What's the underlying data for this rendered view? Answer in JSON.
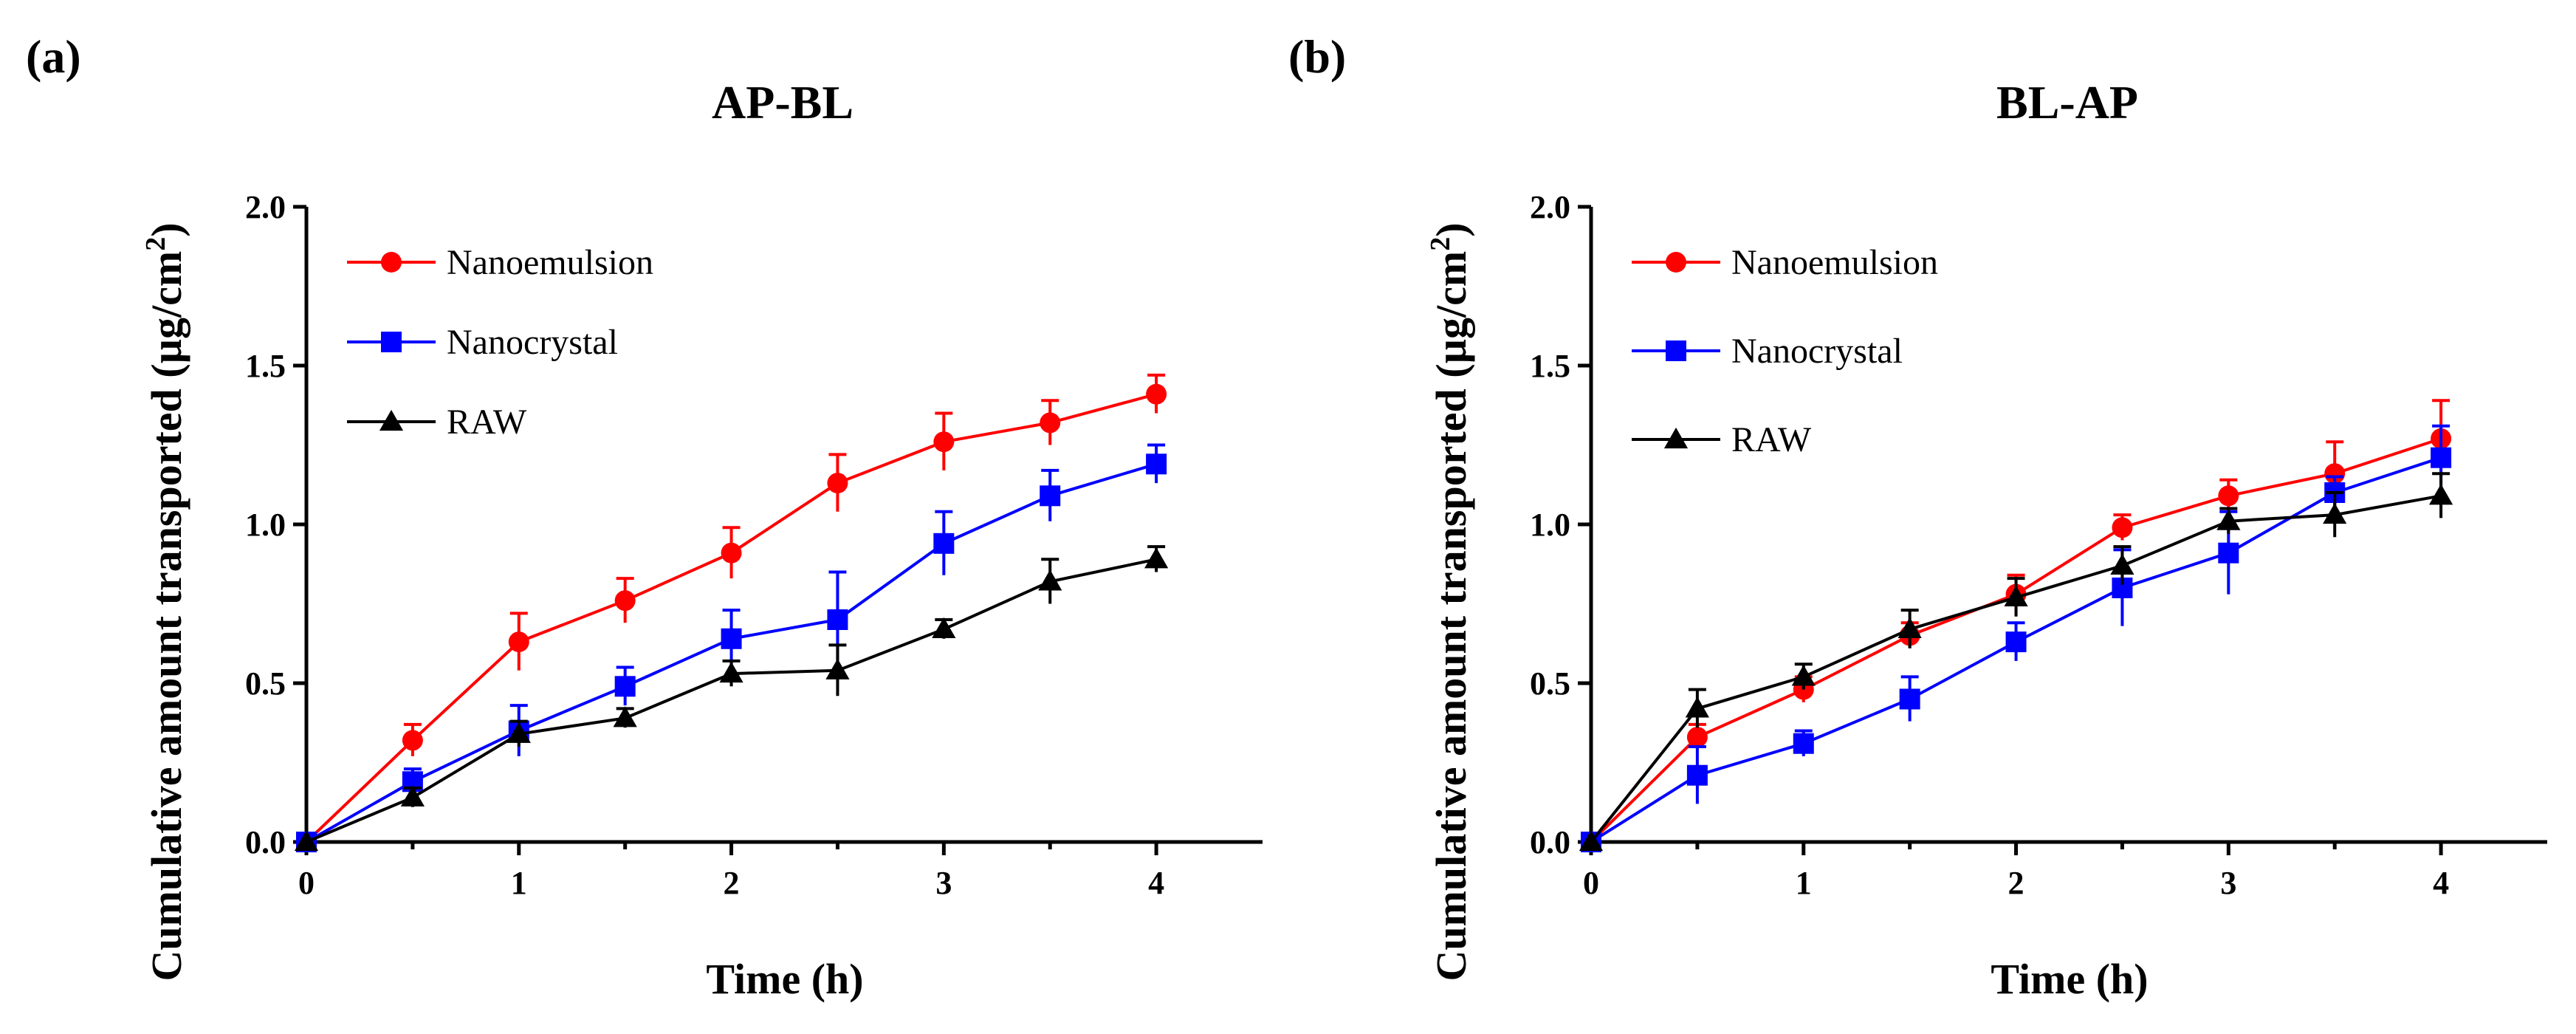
{
  "chart_data": [
    {
      "type": "line",
      "panel_label": "(a)",
      "title": "AP-BL",
      "xlabel": "Time (h)",
      "ylabel": "Cumulative amount transported (µg/cm²)",
      "ylabel_main": "Cumulative amount transported (µg/cm",
      "ylabel_sup": "2",
      "ylabel_end": ")",
      "xlim": [
        0,
        4.5
      ],
      "ylim": [
        0,
        2.0
      ],
      "x_ticks": [
        0,
        1,
        2,
        3,
        4
      ],
      "y_ticks": [
        0.0,
        0.5,
        1.0,
        1.5,
        2.0
      ],
      "x_tick_labels": [
        "0",
        "1",
        "2",
        "3",
        "4"
      ],
      "y_tick_labels": [
        "0.0",
        "0.5",
        "1.0",
        "1.5",
        "2.0"
      ],
      "legend_position": "top-left",
      "x": [
        0,
        0.5,
        1,
        1.5,
        2,
        2.5,
        3,
        3.5,
        4
      ],
      "series": [
        {
          "name": "Nanoemulsion",
          "color": "#ff0000",
          "marker": "circle",
          "values": [
            0,
            0.32,
            0.63,
            0.76,
            0.91,
            1.13,
            1.26,
            1.32,
            1.41
          ],
          "errors": [
            0,
            0.05,
            0.09,
            0.07,
            0.08,
            0.09,
            0.09,
            0.07,
            0.06
          ]
        },
        {
          "name": "Nanocrystal",
          "color": "#0000ff",
          "marker": "square",
          "values": [
            0,
            0.19,
            0.35,
            0.49,
            0.64,
            0.7,
            0.94,
            1.09,
            1.19
          ],
          "errors": [
            0,
            0.04,
            0.08,
            0.06,
            0.09,
            0.15,
            0.1,
            0.08,
            0.06
          ]
        },
        {
          "name": "RAW",
          "color": "#000000",
          "marker": "triangle",
          "values": [
            0,
            0.14,
            0.34,
            0.39,
            0.53,
            0.54,
            0.67,
            0.82,
            0.89
          ],
          "errors": [
            0,
            0.03,
            0.04,
            0.03,
            0.04,
            0.08,
            0.03,
            0.07,
            0.04
          ]
        }
      ]
    },
    {
      "type": "line",
      "panel_label": "(b)",
      "title": "BL-AP",
      "xlabel": "Time (h)",
      "ylabel": "Cumulative amount transported (µg/cm²)",
      "ylabel_main": "Cumulative amount transported (µg/cm",
      "ylabel_sup": "2",
      "ylabel_end": ")",
      "xlim": [
        0,
        4.5
      ],
      "ylim": [
        0,
        2.0
      ],
      "x_ticks": [
        0,
        1,
        2,
        3,
        4
      ],
      "y_ticks": [
        0.0,
        0.5,
        1.0,
        1.5,
        2.0
      ],
      "x_tick_labels": [
        "0",
        "1",
        "2",
        "3",
        "4"
      ],
      "y_tick_labels": [
        "0.0",
        "0.5",
        "1.0",
        "1.5",
        "2.0"
      ],
      "legend_position": "top-left",
      "x": [
        0,
        0.5,
        1,
        1.5,
        2,
        2.5,
        3,
        3.5,
        4
      ],
      "series": [
        {
          "name": "Nanoemulsion",
          "color": "#ff0000",
          "marker": "circle",
          "values": [
            0,
            0.33,
            0.48,
            0.65,
            0.78,
            0.99,
            1.09,
            1.16,
            1.27
          ],
          "errors": [
            0,
            0.04,
            0.04,
            0.04,
            0.06,
            0.04,
            0.05,
            0.1,
            0.12
          ]
        },
        {
          "name": "Nanocrystal",
          "color": "#0000ff",
          "marker": "square",
          "values": [
            0,
            0.21,
            0.31,
            0.45,
            0.63,
            0.8,
            0.91,
            1.1,
            1.21
          ],
          "errors": [
            0,
            0.09,
            0.04,
            0.07,
            0.06,
            0.12,
            0.13,
            0.05,
            0.1
          ]
        },
        {
          "name": "RAW",
          "color": "#000000",
          "marker": "triangle",
          "values": [
            0,
            0.42,
            0.52,
            0.67,
            0.77,
            0.87,
            1.01,
            1.03,
            1.09
          ],
          "errors": [
            0,
            0.06,
            0.04,
            0.06,
            0.06,
            0.06,
            0.04,
            0.07,
            0.07
          ]
        }
      ]
    }
  ]
}
